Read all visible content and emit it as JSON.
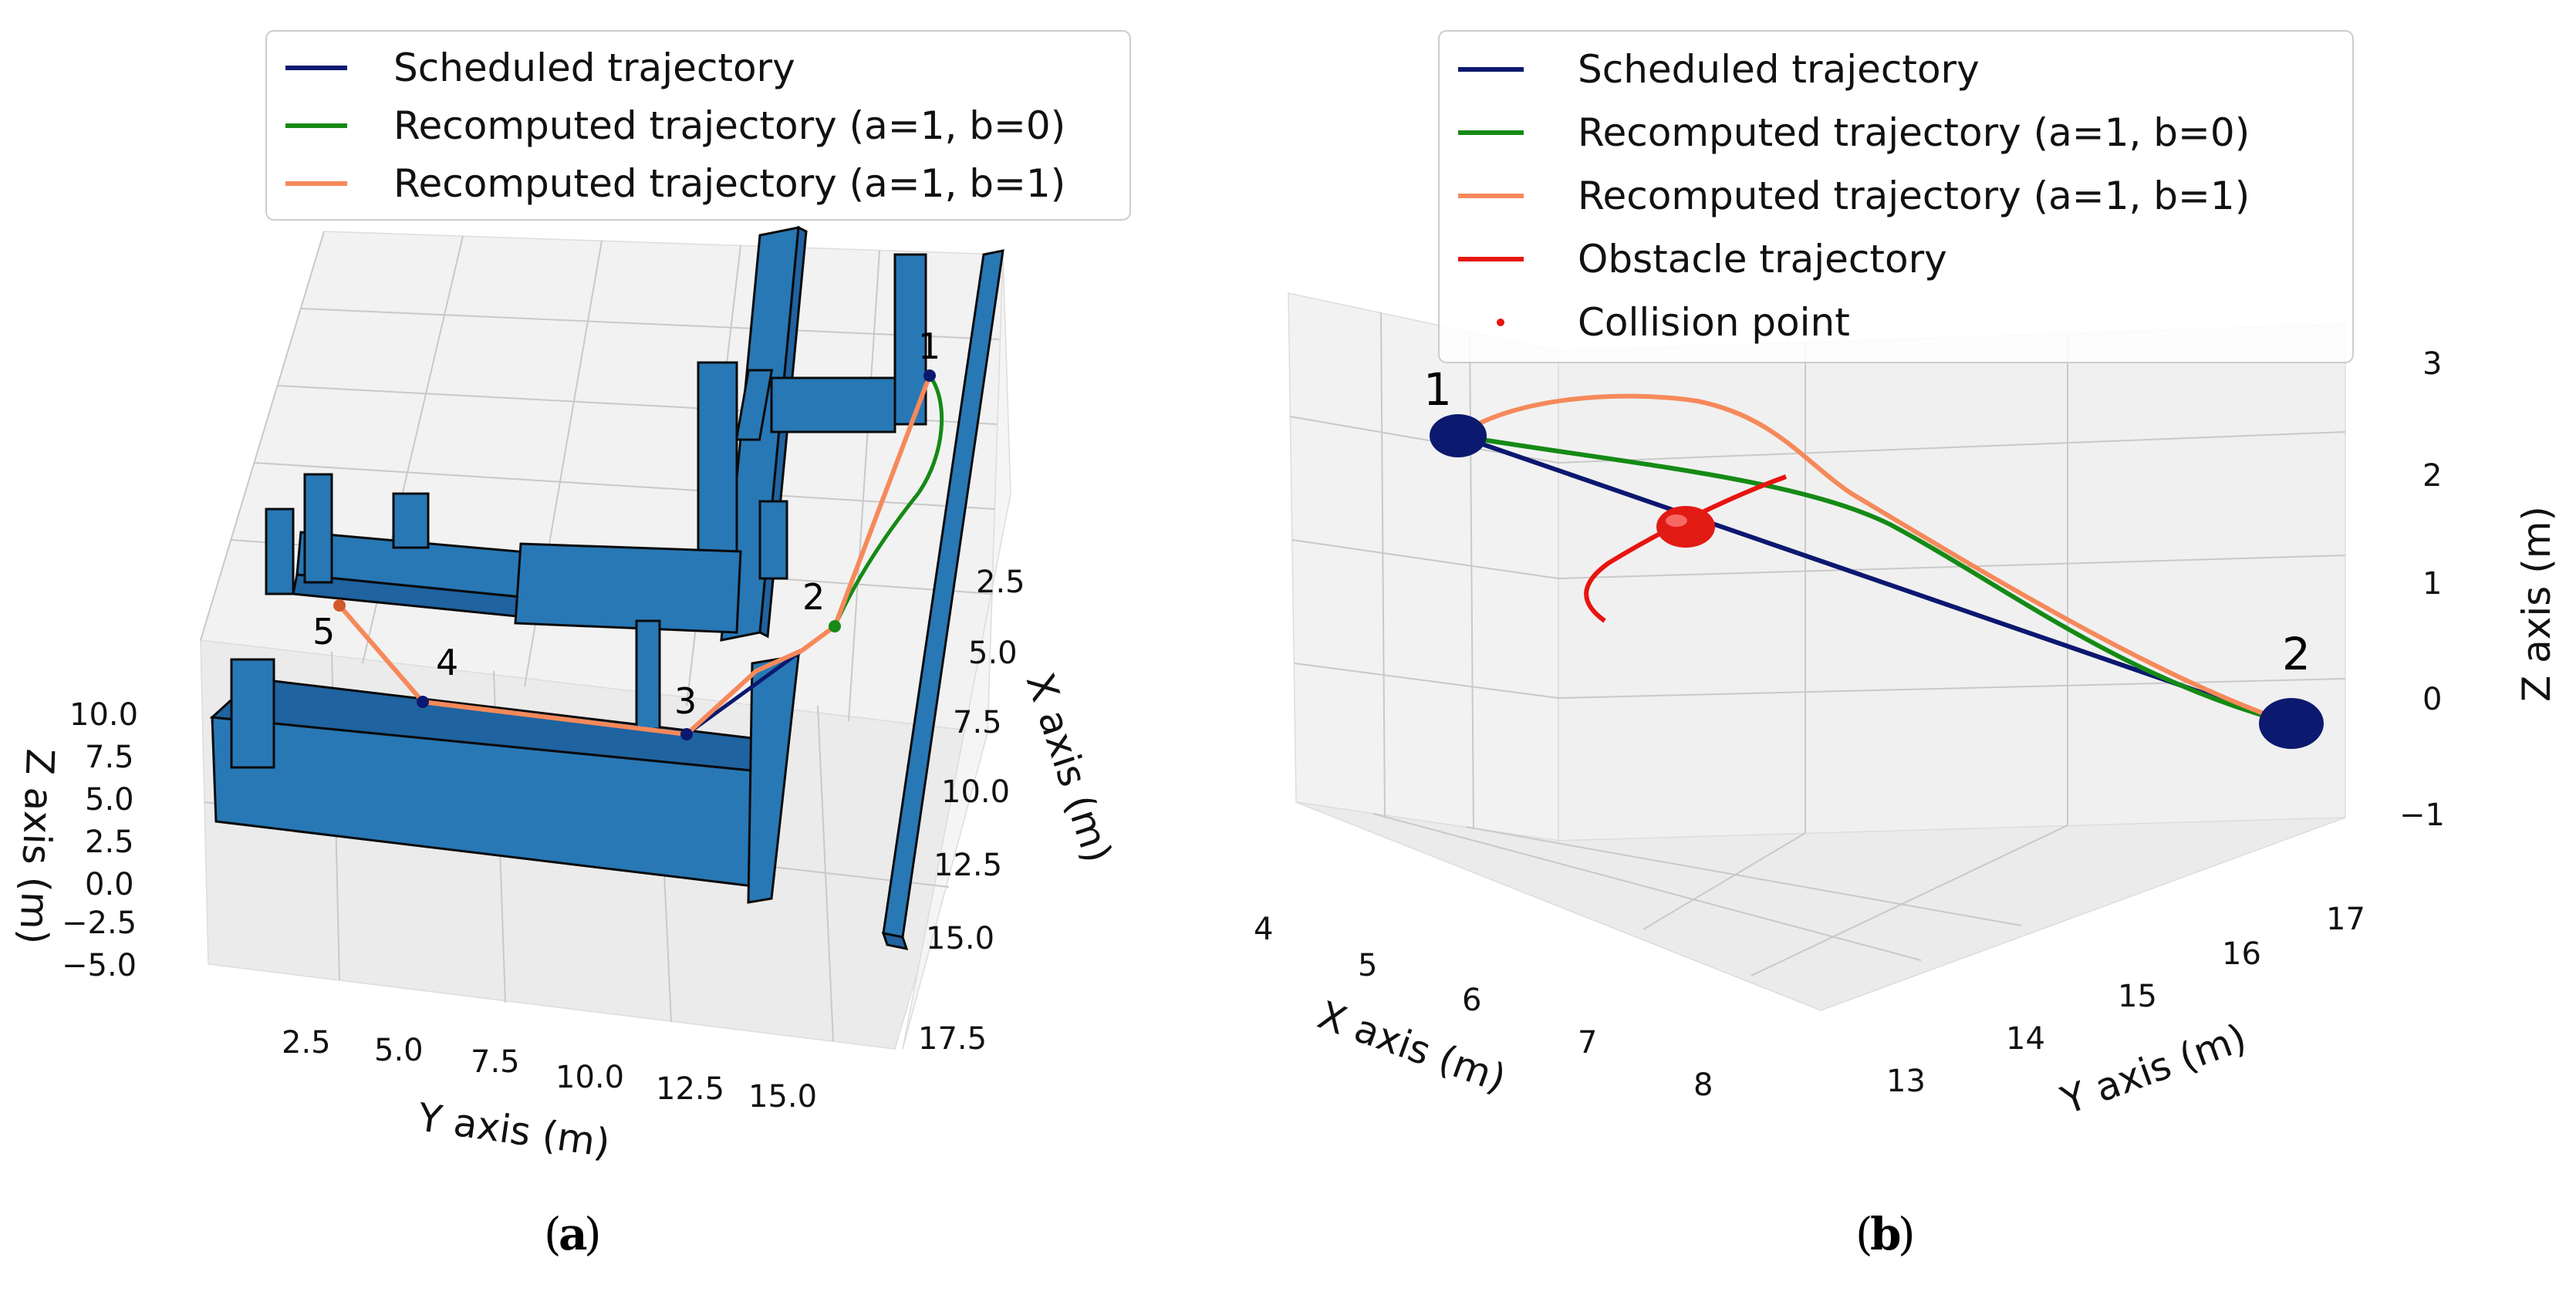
{
  "captions": {
    "a": "(a)",
    "b": "(b)"
  },
  "legend_a": [
    {
      "label": "Scheduled trajectory",
      "color": "#0b1870"
    },
    {
      "label": "Recomputed trajectory (a=1, b=0)",
      "color": "#158a15"
    },
    {
      "label": "Recomputed trajectory (a=1, b=1)",
      "color": "#f6895a"
    }
  ],
  "legend_b": [
    {
      "label": "Scheduled trajectory",
      "color": "#0b1870",
      "kind": "line"
    },
    {
      "label": "Recomputed trajectory (a=1, b=0)",
      "color": "#158a15",
      "kind": "line"
    },
    {
      "label": "Recomputed trajectory (a=1, b=1)",
      "color": "#f6895a",
      "kind": "line"
    },
    {
      "label": "Obstacle trajectory",
      "color": "#e8140f",
      "kind": "line"
    },
    {
      "label": "Collision point",
      "color": "#e8140f",
      "kind": "dot"
    }
  ],
  "chart_data": [
    {
      "panel": "a",
      "type": "line3d",
      "xlabel": "X axis (m)",
      "ylabel": "Y axis (m)",
      "zlabel": "Z axis (m)",
      "x_ticks": [
        "2.5",
        "5.0",
        "7.5",
        "10.0",
        "12.5",
        "15.0",
        "17.5"
      ],
      "y_ticks": [
        "2.5",
        "5.0",
        "7.5",
        "10.0",
        "12.5",
        "15.0"
      ],
      "z_ticks": [
        "10.0",
        "7.5",
        "5.0",
        "2.5",
        "0.0",
        "−2.5",
        "−5.0"
      ],
      "waypoints": [
        {
          "label": "1",
          "x": 1,
          "y": 15.5,
          "z": 2
        },
        {
          "label": "2",
          "x": 5.8,
          "y": 14.8,
          "z": 0
        },
        {
          "label": "3",
          "x": 8.7,
          "y": 11.5,
          "z": 0
        },
        {
          "label": "4",
          "x": 8.0,
          "y": 4.8,
          "z": 0
        },
        {
          "label": "5",
          "x": 5.6,
          "y": 2.6,
          "z": 0
        }
      ],
      "series": [
        {
          "name": "Scheduled trajectory",
          "path": "1-2-3-4-5"
        },
        {
          "name": "Recomputed trajectory (a=1, b=0)",
          "path": "1-2 (detour)"
        },
        {
          "name": "Recomputed trajectory (a=1, b=1)",
          "path": "1-2-3-4-5"
        }
      ]
    },
    {
      "panel": "b",
      "type": "line3d",
      "xlabel": "X axis (m)",
      "ylabel": "Y axis (m)",
      "zlabel": "Z axis (m)",
      "x_ticks": [
        "4",
        "5",
        "6",
        "7",
        "8"
      ],
      "y_ticks": [
        "13",
        "14",
        "15",
        "16",
        "17"
      ],
      "z_ticks": [
        "3",
        "2",
        "1",
        "0",
        "−1"
      ],
      "waypoints": [
        {
          "label": "1",
          "x": 4.3,
          "y": 13.3,
          "z": 2.3
        },
        {
          "label": "2",
          "x": 8.2,
          "y": 16.8,
          "z": 0.0
        }
      ],
      "collision_point": {
        "x": 6.0,
        "y": 14.8,
        "z": 1.2
      },
      "series": [
        {
          "name": "Scheduled trajectory",
          "path": "straight 1→2"
        },
        {
          "name": "Recomputed trajectory (a=1, b=0)",
          "path": "curve 1→2 above schedule"
        },
        {
          "name": "Recomputed trajectory (a=1, b=1)",
          "path": "high arc 1→2"
        },
        {
          "name": "Obstacle trajectory",
          "path": "curved segment through collision point"
        }
      ]
    }
  ]
}
